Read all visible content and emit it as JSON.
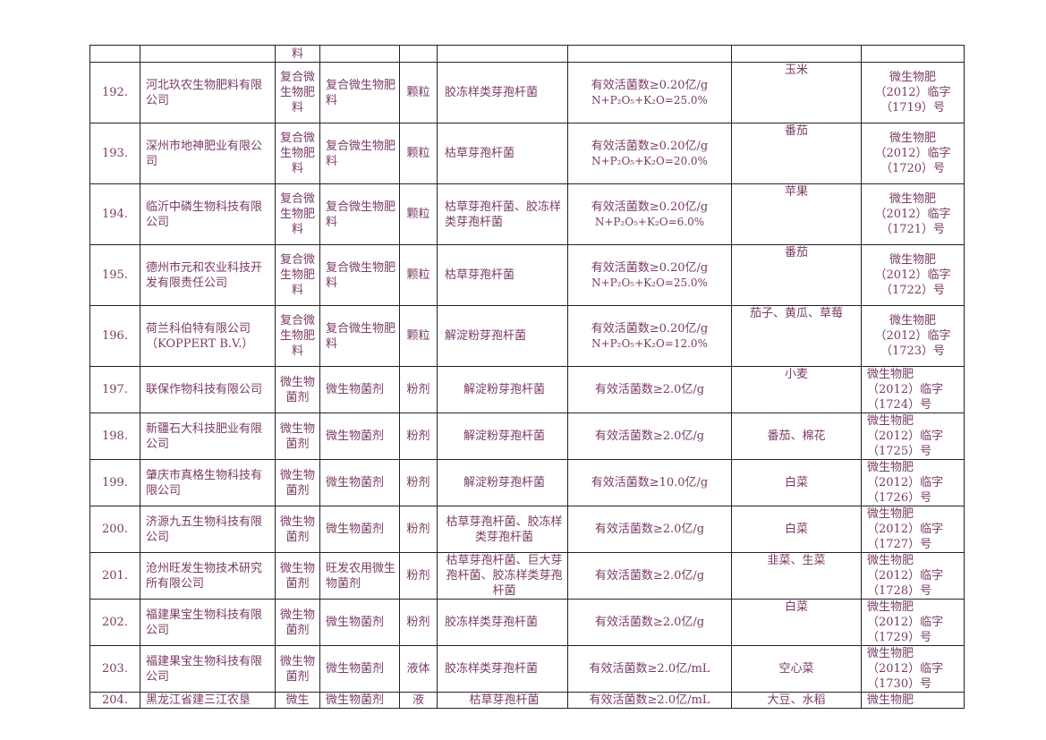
{
  "table": {
    "top_row": {
      "type_fragment": "料"
    },
    "rows": [
      {
        "no": "192.",
        "company": "河北玖农生物肥料有限公司",
        "type": "复合微生物肥料",
        "name": "复合微生物肥料",
        "form": "颗粒",
        "strain": "胶冻样类芽孢杆菌",
        "index_line1": "有效活菌数≥0.20亿/g",
        "index_line2": "N+P₂O₅+K₂O=25.0%",
        "crop": "玉米",
        "reg1": "微生物肥",
        "reg2": "（2012）临字",
        "reg3": "（1719）号"
      },
      {
        "no": "193.",
        "company": "深州市地神肥业有限公司",
        "type": "复合微生物肥料",
        "name": "复合微生物肥料",
        "form": "颗粒",
        "strain": "枯草芽孢杆菌",
        "index_line1": "有效活菌数≥0.20亿/g",
        "index_line2": "N+P₂O₅+K₂O=20.0%",
        "crop": "番茄",
        "reg1": "微生物肥",
        "reg2": "（2012）临字",
        "reg3": "（1720）号"
      },
      {
        "no": "194.",
        "company": "临沂中磷生物科技有限公司",
        "type": "复合微生物肥料",
        "name": "复合微生物肥料",
        "form": "颗粒",
        "strain": "枯草芽孢杆菌、胶冻样类芽孢杆菌",
        "index_line1": "有效活菌数≥0.20亿/g",
        "index_line2": "N+P₂O₅+K₂O=6.0%",
        "crop": "苹果",
        "reg1": "微生物肥",
        "reg2": "（2012）临字",
        "reg3": "（1721）号"
      },
      {
        "no": "195.",
        "company": "德州市元和农业科技开发有限责任公司",
        "type": "复合微生物肥料",
        "name": "复合微生物肥料",
        "form": "颗粒",
        "strain": "枯草芽孢杆菌",
        "index_line1": "有效活菌数≥0.20亿/g",
        "index_line2": "N+P₂O₅+K₂O=25.0%",
        "crop": "番茄",
        "reg1": "微生物肥",
        "reg2": "（2012）临字",
        "reg3": "（1722）号"
      },
      {
        "no": "196.",
        "company": "荷兰科伯特有限公司（KOPPERT B.V.）",
        "type": "复合微生物肥料",
        "name": "复合微生物肥料",
        "form": "颗粒",
        "strain": "解淀粉芽孢杆菌",
        "index_line1": "有效活菌数≥0.20亿/g",
        "index_line2": "N+P₂O₅+K₂O=12.0%",
        "crop": "茄子、黄瓜、草莓",
        "reg1": "微生物肥",
        "reg2": "（2012）临字",
        "reg3": "（1723）号"
      },
      {
        "no": "197.",
        "company": "联保作物科技有限公司",
        "type": "微生物菌剂",
        "name": "微生物菌剂",
        "form": "粉剂",
        "strain": "解淀粉芽孢杆菌",
        "index_line1": "有效活菌数≥2.0亿/g",
        "index_line2": "",
        "crop": "小麦",
        "reg1": "微生物肥",
        "reg2": "（2012）临字",
        "reg3": "（1724）号"
      },
      {
        "no": "198.",
        "company": "新疆石大科技肥业有限公司",
        "type": "微生物菌剂",
        "name": "微生物菌剂",
        "form": "粉剂",
        "strain": "解淀粉芽孢杆菌",
        "index_line1": "有效活菌数≥2.0亿/g",
        "index_line2": "",
        "crop": "番茄、棉花",
        "reg1": "微生物肥",
        "reg2": "（2012）临字",
        "reg3": "（1725）号"
      },
      {
        "no": "199.",
        "company": "肇庆市真格生物科技有限公司",
        "type": "微生物菌剂",
        "name": "微生物菌剂",
        "form": "粉剂",
        "strain": "解淀粉芽孢杆菌",
        "index_line1": "有效活菌数≥10.0亿/g",
        "index_line2": "",
        "crop": "白菜",
        "reg1": "微生物肥",
        "reg2": "（2012）临字",
        "reg3": "（1726）号"
      },
      {
        "no": "200.",
        "company": "济源九五生物科技有限公司",
        "type": "微生物菌剂",
        "name": "微生物菌剂",
        "form": "粉剂",
        "strain": "枯草芽孢杆菌、胶冻样类芽孢杆菌",
        "index_line1": "有效活菌数≥2.0亿/g",
        "index_line2": "",
        "crop": "白菜",
        "reg1": "微生物肥",
        "reg2": "（2012）临字",
        "reg3": "（1727）号"
      },
      {
        "no": "201.",
        "company": "沧州旺发生物技术研究所有限公司",
        "type": "微生物菌剂",
        "name": "旺发农用微生物菌剂",
        "form": "粉剂",
        "strain": "枯草芽孢杆菌、巨大芽孢杆菌、胶冻样类芽孢杆菌",
        "index_line1": "有效活菌数≥2.0亿/g",
        "index_line2": "",
        "crop": "韭菜、生菜",
        "reg1": "微生物肥",
        "reg2": "（2012）临字",
        "reg3": "（1728）号"
      },
      {
        "no": "202.",
        "company": "福建果宝生物科技有限公司",
        "type": "微生物菌剂",
        "name": "微生物菌剂",
        "form": "粉剂",
        "strain": "胶冻样类芽孢杆菌",
        "index_line1": "有效活菌数≥2.0亿/g",
        "index_line2": "",
        "crop": "白菜",
        "reg1": "微生物肥",
        "reg2": "（2012）临字",
        "reg3": "（1729）号"
      },
      {
        "no": "203.",
        "company": "福建果宝生物科技有限公司",
        "type": "微生物菌剂",
        "name": "微生物菌剂",
        "form": "液体",
        "strain": "胶冻样类芽孢杆菌",
        "index_line1": "有效活菌数≥2.0亿/mL",
        "index_line2": "",
        "crop": "空心菜",
        "reg1": "微生物肥",
        "reg2": "（2012）临字",
        "reg3": "（1730）号"
      },
      {
        "no": "204.",
        "company": "黑龙江省建三江农垦",
        "type": "微生",
        "name": "微生物菌剂",
        "form": "液",
        "strain": "枯草芽孢杆菌",
        "index_line1": "有效活菌数≥2.0亿/mL",
        "index_line2": "",
        "crop": "大豆、水稻",
        "reg1": "微生物肥",
        "reg2": "",
        "reg3": ""
      }
    ]
  }
}
